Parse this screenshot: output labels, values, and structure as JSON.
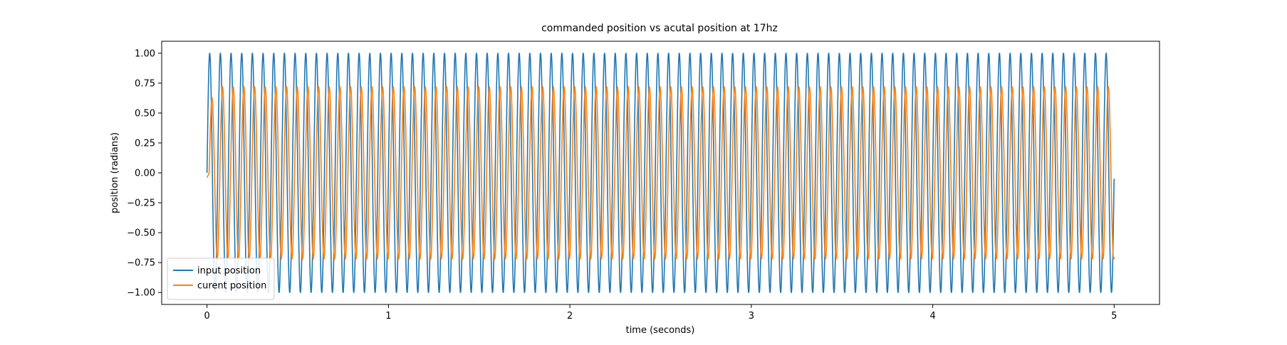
{
  "chart_data": {
    "type": "line",
    "title": "commanded position vs acutal position at 17hz",
    "xlabel": "time (seconds)",
    "ylabel": "position (radians)",
    "xlim": [
      -0.25,
      5.25
    ],
    "ylim": [
      -1.1,
      1.1
    ],
    "xticks": [
      0,
      1,
      2,
      3,
      4,
      5
    ],
    "xtick_labels": [
      "0",
      "1",
      "2",
      "3",
      "4",
      "5"
    ],
    "yticks": [
      -1.0,
      -0.75,
      -0.5,
      -0.25,
      0.0,
      0.25,
      0.5,
      0.75,
      1.0
    ],
    "ytick_labels": [
      "−1.00",
      "−0.75",
      "−0.50",
      "−0.25",
      "0.00",
      "0.25",
      "0.50",
      "0.75",
      "1.00"
    ],
    "grid": false,
    "legend_position": "lower-left",
    "frequency_hz": 17,
    "duration_s": 5,
    "series": [
      {
        "name": "input position",
        "color": "#1f77b4",
        "amplitude": 1.0,
        "start_value": 0.0,
        "end_value": -0.05,
        "sample_points": [
          [
            0.0,
            0.0
          ],
          [
            0.015,
            1.0
          ],
          [
            0.044,
            -1.0
          ],
          [
            0.074,
            1.0
          ],
          [
            2.5,
            0.0
          ],
          [
            4.96,
            1.0
          ],
          [
            4.99,
            -1.0
          ],
          [
            5.0,
            -0.05
          ]
        ]
      },
      {
        "name": "curent position",
        "color": "#ff7f0e",
        "amplitude": 0.72,
        "start_value": -0.04,
        "end_value": -0.72,
        "first_peak": 0.52,
        "sample_points": [
          [
            0.0,
            -0.04
          ],
          [
            0.03,
            0.52
          ],
          [
            0.06,
            -0.72
          ],
          [
            0.09,
            0.72
          ],
          [
            2.5,
            0.0
          ],
          [
            4.98,
            0.72
          ],
          [
            5.0,
            -0.72
          ]
        ]
      }
    ]
  }
}
